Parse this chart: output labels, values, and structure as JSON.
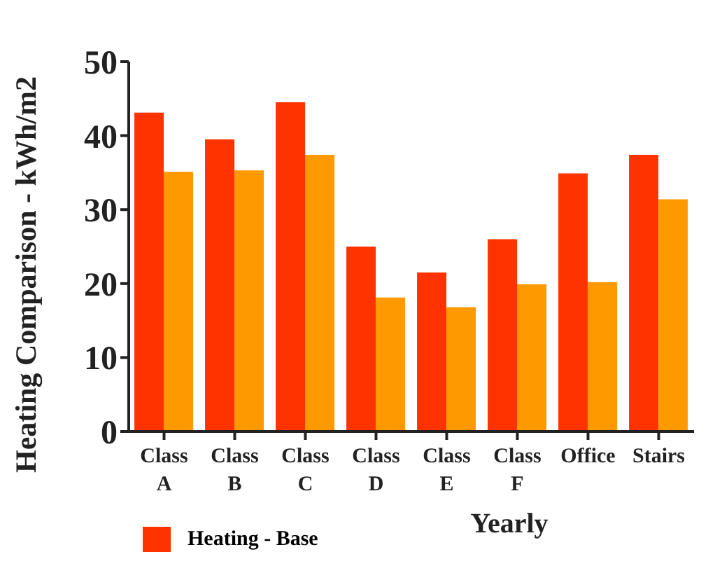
{
  "chart_data": {
    "type": "bar",
    "xlabel": "Yearly",
    "ylabel": "Heating Comparison - kWh/m2",
    "categories": [
      "Class A",
      "Class B",
      "Class C",
      "Class D",
      "Class E",
      "Class F",
      "Office",
      "Stairs"
    ],
    "series": [
      {
        "name": "Heating - Base",
        "color": "#ff3300",
        "values": [
          43.1,
          39.5,
          44.5,
          25.0,
          21.5,
          26.0,
          34.9,
          37.4
        ]
      },
      {
        "color": "#ff9900",
        "values": [
          35.1,
          35.3,
          37.4,
          18.1,
          16.8,
          19.9,
          20.2,
          31.4
        ]
      }
    ],
    "ylim": [
      0,
      50
    ],
    "yticks": [
      0,
      10,
      20,
      30,
      40,
      50
    ],
    "grid": false,
    "legend": "bottom left"
  }
}
